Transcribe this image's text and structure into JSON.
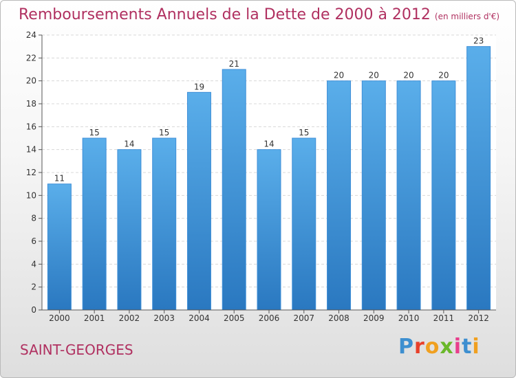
{
  "chart_data": {
    "type": "bar",
    "title": "Remboursements Annuels de la Dette de 2000 à 2012",
    "subtitle": "(en milliers d'€)",
    "categories": [
      "2000",
      "2001",
      "2002",
      "2003",
      "2004",
      "2005",
      "2006",
      "2007",
      "2008",
      "2009",
      "2010",
      "2011",
      "2012"
    ],
    "values": [
      11,
      15,
      14,
      15,
      19,
      21,
      14,
      15,
      20,
      20,
      20,
      20,
      23
    ],
    "ylim": [
      0,
      24
    ],
    "yticks": [
      0,
      2,
      4,
      6,
      8,
      10,
      12,
      14,
      16,
      18,
      20,
      22,
      24
    ],
    "grid": true,
    "colors": {
      "bar_top": "#5aaeea",
      "bar_bottom": "#2a78c0",
      "title": "#b03060"
    }
  },
  "place_name": "SAINT-GEORGES",
  "logo": {
    "letters": [
      "P",
      "r",
      "o",
      "x",
      "i",
      "t",
      "i"
    ],
    "colors": [
      "#3d8fd0",
      "#e8402a",
      "#f0a020",
      "#6ab82a",
      "#e83e8c",
      "#3d8fd0",
      "#f0a020"
    ]
  }
}
